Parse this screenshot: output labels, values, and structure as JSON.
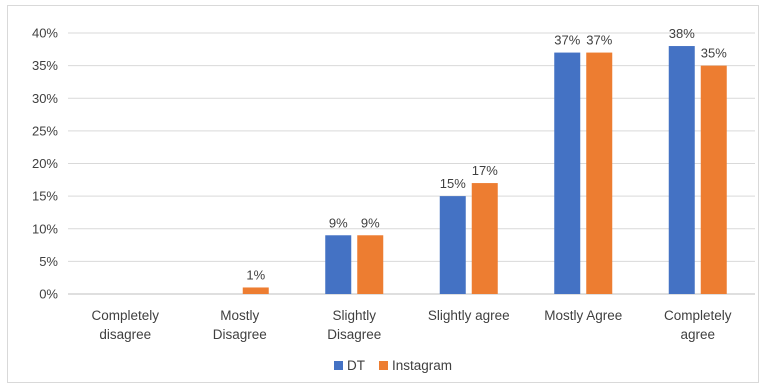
{
  "chart_data": {
    "type": "bar",
    "categories": [
      [
        "Completely",
        "disagree"
      ],
      [
        "Mostly",
        "Disagree"
      ],
      [
        "Slightly",
        "Disagree"
      ],
      [
        "Slightly agree"
      ],
      [
        "Mostly Agree"
      ],
      [
        "Completely",
        "agree"
      ]
    ],
    "series": [
      {
        "name": "DT",
        "color": "#4472c4",
        "values": [
          0,
          0,
          9,
          15,
          37,
          38
        ],
        "labels": [
          "",
          "",
          "9%",
          "15%",
          "37%",
          "38%"
        ]
      },
      {
        "name": "Instagram",
        "color": "#ed7d31",
        "values": [
          0,
          1,
          9,
          17,
          37,
          35
        ],
        "labels": [
          "",
          "1%",
          "9%",
          "17%",
          "37%",
          "35%"
        ]
      }
    ],
    "ylim": [
      0,
      40
    ],
    "yticks": [
      0,
      5,
      10,
      15,
      20,
      25,
      30,
      35,
      40
    ],
    "ytick_labels": [
      "0%",
      "5%",
      "10%",
      "15%",
      "20%",
      "25%",
      "30%",
      "35%",
      "40%"
    ],
    "grid": true,
    "legend_position": "bottom",
    "title": "",
    "xlabel": "",
    "ylabel": ""
  }
}
